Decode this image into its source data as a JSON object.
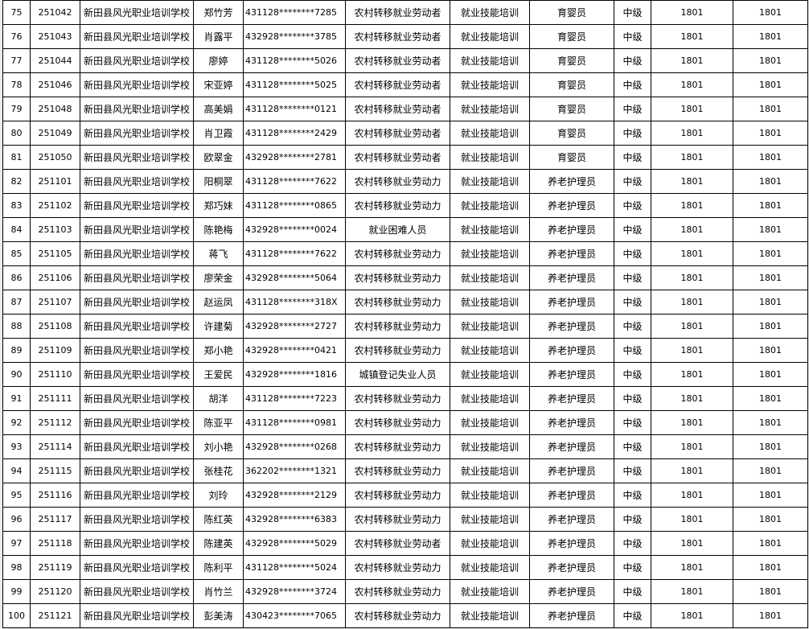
{
  "rows": [
    [
      "75",
      "251042",
      "新田县风光职业培训学校",
      "郑竹芳",
      "431128********7285",
      "农村转移就业劳动者",
      "就业技能培训",
      "育婴员",
      "中级",
      "1801",
      "1801"
    ],
    [
      "76",
      "251043",
      "新田县风光职业培训学校",
      "肖露平",
      "432928********3785",
      "农村转移就业劳动者",
      "就业技能培训",
      "育婴员",
      "中级",
      "1801",
      "1801"
    ],
    [
      "77",
      "251044",
      "新田县风光职业培训学校",
      "廖婷",
      "431128********5026",
      "农村转移就业劳动者",
      "就业技能培训",
      "育婴员",
      "中级",
      "1801",
      "1801"
    ],
    [
      "78",
      "251046",
      "新田县风光职业培训学校",
      "宋亚婷",
      "431128********5025",
      "农村转移就业劳动者",
      "就业技能培训",
      "育婴员",
      "中级",
      "1801",
      "1801"
    ],
    [
      "79",
      "251048",
      "新田县风光职业培训学校",
      "高美娟",
      "431128********0121",
      "农村转移就业劳动者",
      "就业技能培训",
      "育婴员",
      "中级",
      "1801",
      "1801"
    ],
    [
      "80",
      "251049",
      "新田县风光职业培训学校",
      "肖卫霞",
      "431128********2429",
      "农村转移就业劳动者",
      "就业技能培训",
      "育婴员",
      "中级",
      "1801",
      "1801"
    ],
    [
      "81",
      "251050",
      "新田县风光职业培训学校",
      "欧翠金",
      "432928********2781",
      "农村转移就业劳动者",
      "就业技能培训",
      "育婴员",
      "中级",
      "1801",
      "1801"
    ],
    [
      "82",
      "251101",
      "新田县风光职业培训学校",
      "阳桐翠",
      "431128********7622",
      "农村转移就业劳动力",
      "就业技能培训",
      "养老护理员",
      "中级",
      "1801",
      "1801"
    ],
    [
      "83",
      "251102",
      "新田县风光职业培训学校",
      "郑巧妹",
      "431128********0865",
      "农村转移就业劳动力",
      "就业技能培训",
      "养老护理员",
      "中级",
      "1801",
      "1801"
    ],
    [
      "84",
      "251103",
      "新田县风光职业培训学校",
      "陈艳梅",
      "432928********0024",
      "就业困难人员",
      "就业技能培训",
      "养老护理员",
      "中级",
      "1801",
      "1801"
    ],
    [
      "85",
      "251105",
      "新田县风光职业培训学校",
      "蒋飞",
      "431128********7622",
      "农村转移就业劳动力",
      "就业技能培训",
      "养老护理员",
      "中级",
      "1801",
      "1801"
    ],
    [
      "86",
      "251106",
      "新田县风光职业培训学校",
      "廖荣金",
      "432928********5064",
      "农村转移就业劳动力",
      "就业技能培训",
      "养老护理员",
      "中级",
      "1801",
      "1801"
    ],
    [
      "87",
      "251107",
      "新田县风光职业培训学校",
      "赵运凤",
      "431128********318X",
      "农村转移就业劳动力",
      "就业技能培训",
      "养老护理员",
      "中级",
      "1801",
      "1801"
    ],
    [
      "88",
      "251108",
      "新田县风光职业培训学校",
      "许建菊",
      "432928********2727",
      "农村转移就业劳动力",
      "就业技能培训",
      "养老护理员",
      "中级",
      "1801",
      "1801"
    ],
    [
      "89",
      "251109",
      "新田县风光职业培训学校",
      "郑小艳",
      "432928********0421",
      "农村转移就业劳动力",
      "就业技能培训",
      "养老护理员",
      "中级",
      "1801",
      "1801"
    ],
    [
      "90",
      "251110",
      "新田县风光职业培训学校",
      "王爱民",
      "432928********1816",
      "城镇登记失业人员",
      "就业技能培训",
      "养老护理员",
      "中级",
      "1801",
      "1801"
    ],
    [
      "91",
      "251111",
      "新田县风光职业培训学校",
      "胡洋",
      "431128********7223",
      "农村转移就业劳动力",
      "就业技能培训",
      "养老护理员",
      "中级",
      "1801",
      "1801"
    ],
    [
      "92",
      "251112",
      "新田县风光职业培训学校",
      "陈亚平",
      "431128********0981",
      "农村转移就业劳动力",
      "就业技能培训",
      "养老护理员",
      "中级",
      "1801",
      "1801"
    ],
    [
      "93",
      "251114",
      "新田县风光职业培训学校",
      "刘小艳",
      "432928********0268",
      "农村转移就业劳动力",
      "就业技能培训",
      "养老护理员",
      "中级",
      "1801",
      "1801"
    ],
    [
      "94",
      "251115",
      "新田县风光职业培训学校",
      "张桂花",
      "362202********1321",
      "农村转移就业劳动力",
      "就业技能培训",
      "养老护理员",
      "中级",
      "1801",
      "1801"
    ],
    [
      "95",
      "251116",
      "新田县风光职业培训学校",
      "刘玲",
      "432928********2129",
      "农村转移就业劳动力",
      "就业技能培训",
      "养老护理员",
      "中级",
      "1801",
      "1801"
    ],
    [
      "96",
      "251117",
      "新田县风光职业培训学校",
      "陈红英",
      "432928********6383",
      "农村转移就业劳动力",
      "就业技能培训",
      "养老护理员",
      "中级",
      "1801",
      "1801"
    ],
    [
      "97",
      "251118",
      "新田县风光职业培训学校",
      "陈建英",
      "432928********5029",
      "农村转移就业劳动者",
      "就业技能培训",
      "养老护理员",
      "中级",
      "1801",
      "1801"
    ],
    [
      "98",
      "251119",
      "新田县风光职业培训学校",
      "陈利平",
      "431128********5024",
      "农村转移就业劳动力",
      "就业技能培训",
      "养老护理员",
      "中级",
      "1801",
      "1801"
    ],
    [
      "99",
      "251120",
      "新田县风光职业培训学校",
      "肖竹兰",
      "432928********3724",
      "农村转移就业劳动力",
      "就业技能培训",
      "养老护理员",
      "中级",
      "1801",
      "1801"
    ],
    [
      "100",
      "251121",
      "新田县风光职业培训学校",
      "彭美涛",
      "430423********7065",
      "农村转移就业劳动力",
      "就业技能培训",
      "养老护理员",
      "中级",
      "1801",
      "1801"
    ]
  ]
}
